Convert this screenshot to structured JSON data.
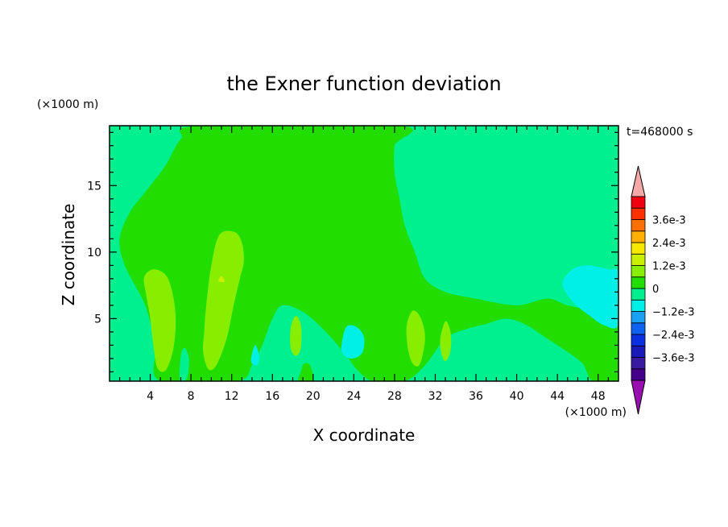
{
  "chart_data": {
    "type": "contour",
    "title": "the Exner function deviation",
    "xlabel": "X coordinate",
    "ylabel": "Z coordinate",
    "x_units": "(×1000 m)",
    "z_units": "(×1000 m)",
    "time_label": "t=468000 s",
    "xlim": [
      0,
      50
    ],
    "ylim": [
      0.3,
      19.5
    ],
    "x_ticks": [
      4,
      8,
      12,
      16,
      20,
      24,
      28,
      32,
      36,
      40,
      44,
      48
    ],
    "y_ticks": [
      5,
      10,
      15
    ],
    "colorbar": {
      "levels": [
        -0.0042,
        -0.0036,
        -0.003,
        -0.0024,
        -0.0018,
        -0.0012,
        -0.0006,
        0,
        0.0006,
        0.0012,
        0.0018,
        0.0024,
        0.003,
        0.0036,
        0.0042
      ],
      "tick_values": [
        0.0036,
        0.0024,
        0.0012,
        0,
        -0.0012,
        -0.0024,
        -0.0036
      ],
      "tick_labels": [
        "3.6e-3",
        "2.4e-3",
        "1.2e-3",
        "0",
        "−1.2e-3",
        "−2.4e-3",
        "−3.6e-3"
      ],
      "colors": [
        "#440088",
        "#3a1aa0",
        "#1a1ab8",
        "#0a30e0",
        "#0e62f0",
        "#1aa0f5",
        "#00f0e8",
        "#00f090",
        "#22dd00",
        "#88ee00",
        "#c8f000",
        "#f8e800",
        "#ffb000",
        "#ff7000",
        "#ff3000",
        "#ee0010"
      ],
      "over_color": "#f4a8a8",
      "under_color": "#9a0fb0"
    },
    "background_level_color": "#00f090",
    "regions": [
      {
        "level": "0 to 6e-4",
        "color": "#22dd00",
        "points": [
          [
            5,
            0.3
          ],
          [
            4.5,
            3
          ],
          [
            3.5,
            6
          ],
          [
            1.5,
            9
          ],
          [
            1,
            11
          ],
          [
            2,
            13
          ],
          [
            3.5,
            14.5
          ],
          [
            5.5,
            16.5
          ],
          [
            7,
            18.5
          ],
          [
            9,
            19.5
          ],
          [
            28.5,
            19.5
          ],
          [
            28,
            18
          ],
          [
            28,
            16
          ],
          [
            28.5,
            14
          ],
          [
            29,
            12
          ],
          [
            30,
            10
          ],
          [
            31,
            8
          ],
          [
            33,
            7
          ],
          [
            36,
            6.5
          ],
          [
            40,
            6
          ],
          [
            43,
            6.5
          ],
          [
            45,
            6
          ],
          [
            48,
            5.5
          ],
          [
            50,
            5
          ],
          [
            50,
            0.3
          ],
          [
            47.5,
            0.3
          ],
          [
            46.5,
            1.6
          ],
          [
            45,
            2.5
          ],
          [
            43,
            3.5
          ],
          [
            41,
            4.5
          ],
          [
            39,
            5
          ],
          [
            37,
            4.6
          ],
          [
            35,
            4.2
          ],
          [
            33,
            3.5
          ],
          [
            31,
            1.5
          ],
          [
            29,
            0.3
          ],
          [
            26,
            0.3
          ],
          [
            24.5,
            1
          ],
          [
            23,
            2.5
          ],
          [
            21,
            4.2
          ],
          [
            19,
            5.5
          ],
          [
            17,
            6
          ],
          [
            16,
            5
          ],
          [
            15,
            3
          ],
          [
            14,
            1.5
          ],
          [
            12.5,
            0.3
          ]
        ]
      },
      {
        "level": "0 to 6e-4",
        "color": "#22dd00",
        "points": [
          [
            47.4,
            1.8
          ],
          [
            48.6,
            1.6
          ],
          [
            49.4,
            2.4
          ],
          [
            49.2,
            3.6
          ],
          [
            48,
            4
          ],
          [
            47,
            3.6
          ],
          [
            46.8,
            2.6
          ]
        ]
      },
      {
        "level": "0 to 6e-4",
        "color": "#22dd00",
        "points": [
          [
            18.6,
            0.3
          ],
          [
            20,
            0.3
          ],
          [
            19.7,
            1.5
          ],
          [
            19.1,
            1.6
          ],
          [
            18.8,
            1
          ]
        ]
      },
      {
        "level": "6e-4 to 1.2e-3",
        "color": "#88ee00",
        "points": [
          [
            3.4,
            8.1
          ],
          [
            4.3,
            8.7
          ],
          [
            5.6,
            8.2
          ],
          [
            6.3,
            6.5
          ],
          [
            6.5,
            4.5
          ],
          [
            6.2,
            2.5
          ],
          [
            5.5,
            1.1
          ],
          [
            4.7,
            1.3
          ],
          [
            4.3,
            3
          ],
          [
            4,
            5
          ],
          [
            3.6,
            6.8
          ]
        ]
      },
      {
        "level": "6e-4 to 1.2e-3",
        "color": "#88ee00",
        "points": [
          [
            9.5,
            6
          ],
          [
            10,
            9
          ],
          [
            10.8,
            11.3
          ],
          [
            12.3,
            11.5
          ],
          [
            13,
            10.7
          ],
          [
            13.2,
            9.3
          ],
          [
            12.8,
            8
          ],
          [
            12.2,
            6
          ],
          [
            11.5,
            3.5
          ],
          [
            10.5,
            1.5
          ],
          [
            9.7,
            1.2
          ],
          [
            9.2,
            2.5
          ],
          [
            9.3,
            4
          ]
        ]
      },
      {
        "level": "6e-4 to 1.2e-3",
        "color": "#88ee00",
        "points": [
          [
            17.8,
            4.3
          ],
          [
            18.3,
            5.2
          ],
          [
            18.8,
            4.5
          ],
          [
            18.8,
            2.8
          ],
          [
            18.3,
            2.2
          ],
          [
            17.8,
            2.8
          ]
        ]
      },
      {
        "level": "6e-4 to 1.2e-3",
        "color": "#88ee00",
        "points": [
          [
            29.2,
            4.5
          ],
          [
            29.8,
            5.6
          ],
          [
            30.6,
            5
          ],
          [
            31,
            3.5
          ],
          [
            30.5,
            1.6
          ],
          [
            29.8,
            1.6
          ],
          [
            29.3,
            2.8
          ]
        ]
      },
      {
        "level": "6e-4 to 1.2e-3",
        "color": "#88ee00",
        "points": [
          [
            32.5,
            3.5
          ],
          [
            33,
            4.8
          ],
          [
            33.5,
            4
          ],
          [
            33.5,
            2.6
          ],
          [
            33,
            1.8
          ],
          [
            32.6,
            2.4
          ]
        ]
      },
      {
        "level": "-6e-4 to 0",
        "color": "#00f090",
        "points": [
          [
            6.9,
            0.3
          ],
          [
            7,
            2.2
          ],
          [
            7.4,
            2.8
          ],
          [
            7.8,
            2
          ],
          [
            7.7,
            0.8
          ],
          [
            7.4,
            0.3
          ]
        ]
      },
      {
        "level": "-1.2e-3 to -6e-4",
        "color": "#00f0e8",
        "points": [
          [
            13.9,
            1.8
          ],
          [
            14.3,
            3
          ],
          [
            14.7,
            2.2
          ],
          [
            14.5,
            1.5
          ]
        ]
      },
      {
        "level": "-1.2e-3 to -6e-4",
        "color": "#00f0e8",
        "points": [
          [
            22.8,
            2.6
          ],
          [
            23.2,
            4.3
          ],
          [
            24.2,
            4.4
          ],
          [
            25,
            3.6
          ],
          [
            24.8,
            2.4
          ],
          [
            23.7,
            2
          ]
        ]
      },
      {
        "level": "-1.2e-3 to -6e-4",
        "color": "#00f0e8",
        "points": [
          [
            44.5,
            7.6
          ],
          [
            45.5,
            8.7
          ],
          [
            47,
            9
          ],
          [
            49,
            8.7
          ],
          [
            50,
            8.4
          ],
          [
            50,
            4.6
          ],
          [
            48.6,
            4.5
          ],
          [
            47.2,
            5.2
          ],
          [
            45.6,
            6.2
          ]
        ]
      },
      {
        "level": "1.2e-3 to 1.8e-3",
        "color": "#c8f000",
        "points": [
          [
            10.7,
            7.8
          ],
          [
            11,
            8.2
          ],
          [
            11.3,
            7.8
          ]
        ]
      }
    ]
  }
}
